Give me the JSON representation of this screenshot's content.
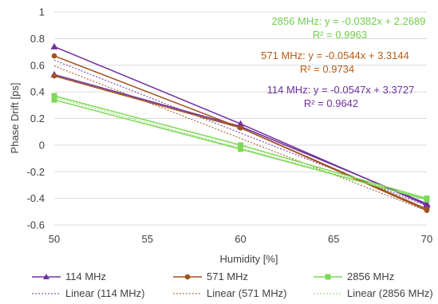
{
  "chart_data": {
    "type": "line",
    "xlabel": "Humidity [%]",
    "ylabel": "Phase Drift [ps]",
    "xlim": [
      50,
      70
    ],
    "ylim": [
      -0.6,
      1
    ],
    "x_ticks": [
      "50",
      "55",
      "60",
      "65",
      "70"
    ],
    "y_ticks": [
      "-0.6",
      "-0.4",
      "-0.2",
      "0",
      "0.2",
      "0.4",
      "0.6",
      "0.8",
      "1"
    ],
    "grid": "horizontal",
    "legend_position": "bottom",
    "series": [
      {
        "name": "114 MHz",
        "color": "#7030a0",
        "marker": "triangle",
        "runs": [
          {
            "x": [
              50,
              60,
              70
            ],
            "y": [
              0.74,
              0.16,
              -0.45
            ]
          },
          {
            "x": [
              50,
              60,
              70
            ],
            "y": [
              0.53,
              0.14,
              -0.44
            ]
          }
        ]
      },
      {
        "name": "571 MHz",
        "color": "#a0521d",
        "marker": "circle",
        "runs": [
          {
            "x": [
              50,
              60,
              70
            ],
            "y": [
              0.67,
              0.13,
              -0.48
            ]
          },
          {
            "x": [
              50,
              60,
              70
            ],
            "y": [
              0.52,
              0.13,
              -0.49
            ]
          }
        ]
      },
      {
        "name": "2856 MHz",
        "color": "#7ed957",
        "marker": "square",
        "runs": [
          {
            "x": [
              50,
              60,
              70
            ],
            "y": [
              0.37,
              0.0,
              -0.4
            ]
          },
          {
            "x": [
              50,
              60,
              70
            ],
            "y": [
              0.34,
              -0.03,
              -0.41
            ]
          }
        ]
      }
    ],
    "trendlines": [
      {
        "name": "Linear (114 MHz)",
        "color": "#7030a0",
        "slope": -0.0547,
        "intercept": 3.3727
      },
      {
        "name": "Linear (571 MHz)",
        "color": "#a0521d",
        "slope": -0.0544,
        "intercept": 3.3144
      },
      {
        "name": "Linear (2856 MHz)",
        "color": "#7ed957",
        "slope": -0.0382,
        "intercept": 2.2689
      }
    ],
    "annotations": [
      {
        "equation": "2856 MHz: y = -0.0382x + 2.2689",
        "r2": "R² = 0.9963",
        "color": "#6fcf4a"
      },
      {
        "equation": "571 MHz: y = -0.0544x + 3.3144",
        "r2": "R² = 0.9734",
        "color": "#b85c14"
      },
      {
        "equation": "114 MHz: y = -0.0547x + 3.3727",
        "r2": "R² = 0.9642",
        "color": "#7030a0"
      }
    ]
  }
}
